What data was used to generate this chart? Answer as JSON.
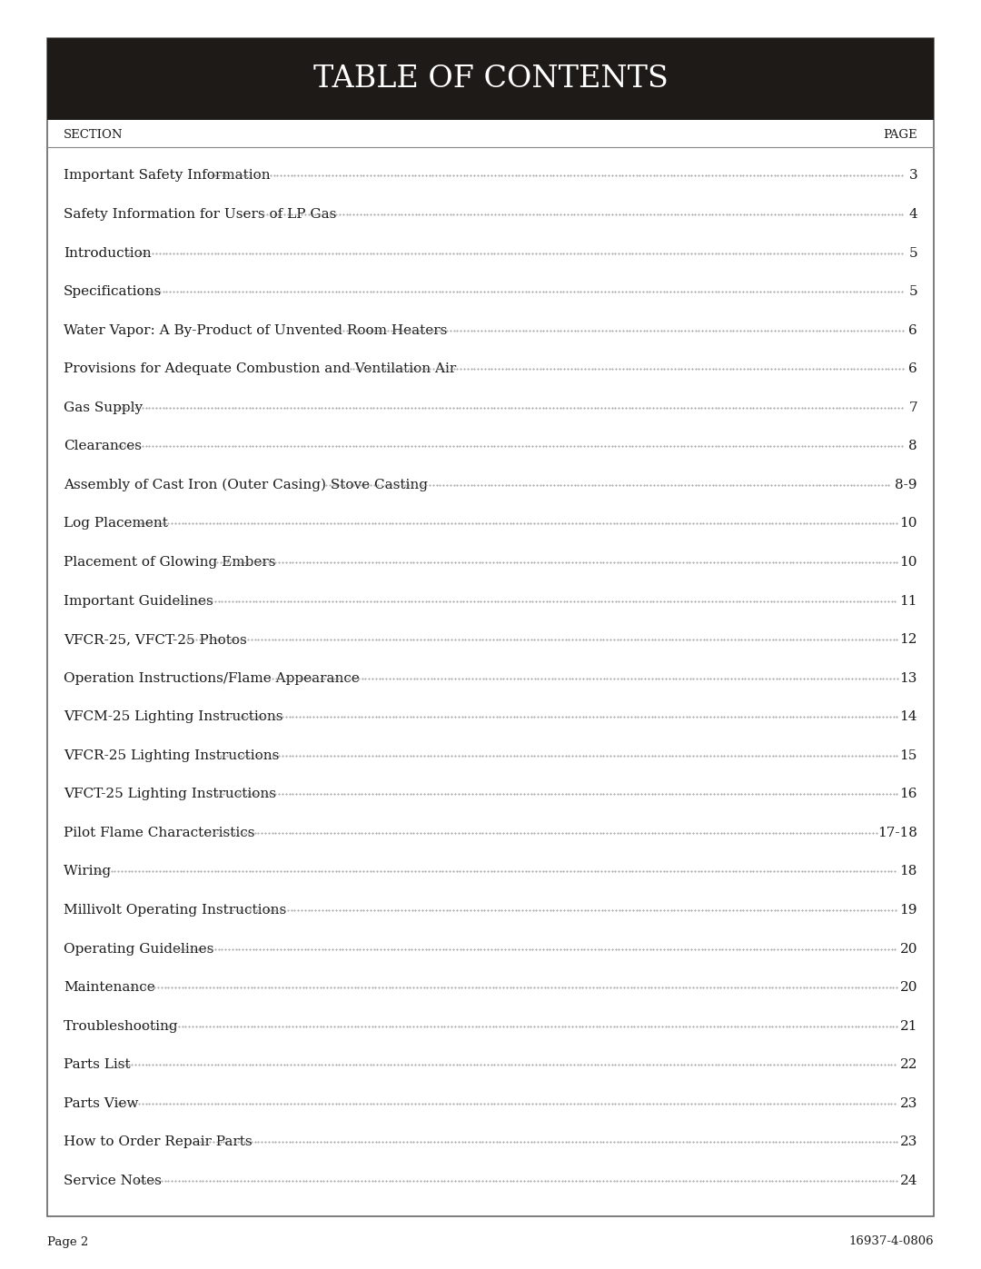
{
  "title": "TABLE OF CONTENTS",
  "title_bg_color": "#1e1a18",
  "title_text_color": "#ffffff",
  "section_label": "SECTION",
  "page_label": "PAGE",
  "entries": [
    {
      "section": "Important Safety Information",
      "page": "3"
    },
    {
      "section": "Safety Information for Users of LP Gas",
      "page": "4"
    },
    {
      "section": "Introduction",
      "page": "5"
    },
    {
      "section": "Specifications",
      "page": "5"
    },
    {
      "section": "Water Vapor: A By-Product of Unvented Room Heaters",
      "page": "6"
    },
    {
      "section": "Provisions for Adequate Combustion and Ventilation Air",
      "page": "6"
    },
    {
      "section": "Gas Supply",
      "page": "7"
    },
    {
      "section": "Clearances",
      "page": "8"
    },
    {
      "section": "Assembly of Cast Iron (Outer Casing) Stove Casting ",
      "page": "8-9"
    },
    {
      "section": "Log Placement",
      "page": "10"
    },
    {
      "section": "Placement of Glowing Embers",
      "page": "10"
    },
    {
      "section": "Important Guidelines",
      "page": "11"
    },
    {
      "section": "VFCR-25, VFCT-25 Photos",
      "page": "12"
    },
    {
      "section": "Operation Instructions/Flame Appearance",
      "page": "13"
    },
    {
      "section": "VFCM-25 Lighting Instructions ",
      "page": "14"
    },
    {
      "section": "VFCR-25 Lighting Instructions",
      "page": "15"
    },
    {
      "section": "VFCT-25 Lighting Instructions  ",
      "page": "16"
    },
    {
      "section": "Pilot Flame Characteristics",
      "page": "17-18"
    },
    {
      "section": "Wiring ",
      "page": "18"
    },
    {
      "section": "Millivolt Operating Instructions",
      "page": "19"
    },
    {
      "section": "Operating Guidelines",
      "page": "20"
    },
    {
      "section": "Maintenance",
      "page": "20"
    },
    {
      "section": "Troubleshooting",
      "page": "21"
    },
    {
      "section": "Parts List",
      "page": "22"
    },
    {
      "section": "Parts View ",
      "page": "23"
    },
    {
      "section": "How to Order Repair Parts",
      "page": "23"
    },
    {
      "section": "Service Notes",
      "page": "24"
    }
  ],
  "footer_left": "Page 2",
  "footer_right": "16937-4-0806",
  "outer_border_color": "#666666",
  "header_line_color": "#888888",
  "bg_color": "#ffffff",
  "text_color": "#1a1a1a",
  "dot_color": "#888888",
  "font_size": 11.0,
  "header_font_size": 9.5,
  "title_font_size": 24
}
